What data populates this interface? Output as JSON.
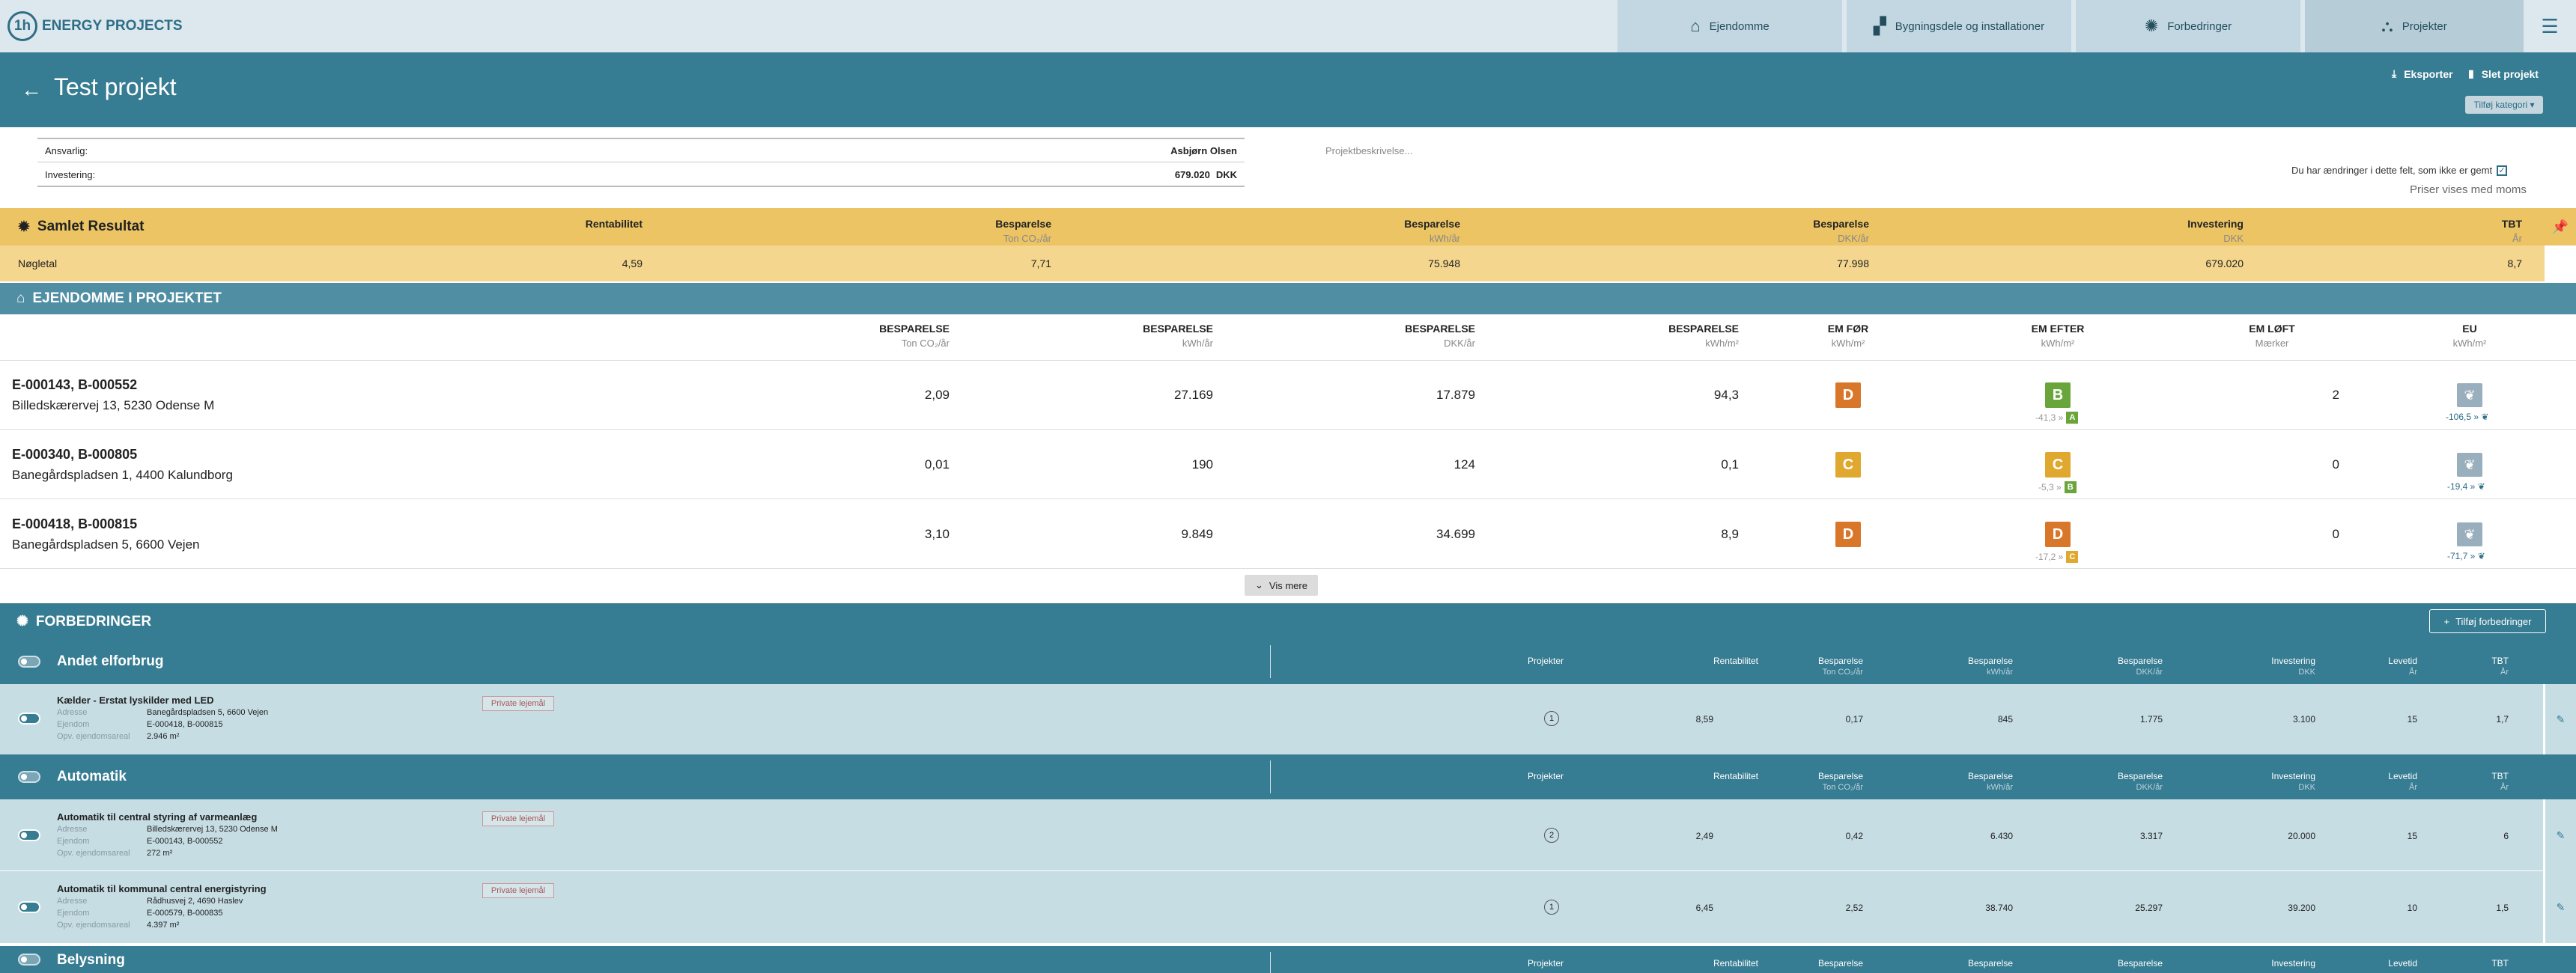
{
  "nav": {
    "logo_mark": "1h",
    "logo_text": "ENERGY PROJECTS",
    "tabs": [
      {
        "label": "Ejendomme",
        "icon": "house-icon"
      },
      {
        "label": "Bygningsdele og installationer",
        "icon": "building-parts-icon"
      },
      {
        "label": "Forbedringer",
        "icon": "lightbulb-icon"
      },
      {
        "label": "Projekter",
        "icon": "projects-icon"
      }
    ]
  },
  "header": {
    "title": "Test projekt",
    "export_label": "Eksporter",
    "delete_label": "Slet projekt",
    "add_category_label": "Tilføj kategori ▾"
  },
  "info": {
    "responsible_label": "Ansvarlig:",
    "responsible_value": "Asbjørn Olsen",
    "investment_label": "Investering:",
    "investment_value": "679.020",
    "investment_unit": "DKK",
    "description_placeholder": "Projektbeskrivelse...",
    "unsaved_text": "Du har ændringer i dette felt, som ikke er gemt",
    "prices_text": "Priser vises med moms"
  },
  "result": {
    "title": "Samlet Resultat",
    "cols": [
      {
        "label": "Rentabilitet",
        "unit": ""
      },
      {
        "label": "Besparelse",
        "unit": "Ton CO₂/år"
      },
      {
        "label": "Besparelse",
        "unit": "kWh/år"
      },
      {
        "label": "Besparelse",
        "unit": "DKK/år"
      },
      {
        "label": "Investering",
        "unit": "DKK"
      },
      {
        "label": "TBT",
        "unit": "År"
      }
    ],
    "row_label": "Nøgletal",
    "values": [
      "4,59",
      "7,71",
      "75.948",
      "77.998",
      "679.020",
      "8,7"
    ]
  },
  "properties": {
    "title": "EJENDOMME I PROJEKTET",
    "cols": [
      {
        "label": "BESPARELSE",
        "unit": "Ton CO₂/år"
      },
      {
        "label": "BESPARELSE",
        "unit": "kWh/år"
      },
      {
        "label": "BESPARELSE",
        "unit": "DKK/år"
      },
      {
        "label": "BESPARELSE",
        "unit": "kWh/m²"
      },
      {
        "label": "EM FØR",
        "unit": "kWh/m²"
      },
      {
        "label": "EM EFTER",
        "unit": "kWh/m²"
      },
      {
        "label": "EM LØFT",
        "unit": "Mærker"
      },
      {
        "label": "EU",
        "unit": "kWh/m²"
      }
    ],
    "rows": [
      {
        "id": "E-000143, B-000552",
        "address": "Billedskærervej 13, 5230 Odense M",
        "co2": "2,09",
        "kwh": "27.169",
        "dkk": "17.879",
        "kwhm2": "94,3",
        "before": "D",
        "before_color": "#d8772a",
        "after": "B",
        "after_color": "#6aa53c",
        "after_sub": "-41,3 »",
        "after_mini": "A",
        "after_mini_color": "#6aa53c",
        "lift": "2",
        "eu_sub": "-106,5 »"
      },
      {
        "id": "E-000340, B-000805",
        "address": "Banegårdspladsen 1, 4400 Kalundborg",
        "co2": "0,01",
        "kwh": "190",
        "dkk": "124",
        "kwhm2": "0,1",
        "before": "C",
        "before_color": "#e0a82e",
        "after": "C",
        "after_color": "#e0a82e",
        "after_sub": "-5,3 »",
        "after_mini": "B",
        "after_mini_color": "#6aa53c",
        "lift": "0",
        "eu_sub": "-19,4 »"
      },
      {
        "id": "E-000418, B-000815",
        "address": "Banegårdspladsen 5, 6600 Vejen",
        "co2": "3,10",
        "kwh": "9.849",
        "dkk": "34.699",
        "kwhm2": "8,9",
        "before": "D",
        "before_color": "#d8772a",
        "after": "D",
        "after_color": "#d8772a",
        "after_sub": "-17,2 »",
        "after_mini": "C",
        "after_mini_color": "#e0a82e",
        "lift": "0",
        "eu_sub": "-71,7 »"
      }
    ],
    "show_more": "Vis mere"
  },
  "improvements": {
    "title": "FORBEDRINGER",
    "add_label": "Tilføj forbedringer",
    "col_heads": [
      {
        "label": "Projekter",
        "unit": ""
      },
      {
        "label": "Rentabilitet",
        "unit": ""
      },
      {
        "label": "Besparelse",
        "unit": "Ton CO₂/år"
      },
      {
        "label": "Besparelse",
        "unit": "kWh/år"
      },
      {
        "label": "Besparelse",
        "unit": "DKK/år"
      },
      {
        "label": "Investering",
        "unit": "DKK"
      },
      {
        "label": "Levetid",
        "unit": "År"
      },
      {
        "label": "TBT",
        "unit": "År"
      }
    ],
    "labels": {
      "address": "Adresse",
      "property": "Ejendom",
      "area": "Opv. ejendomsareal",
      "private": "Private lejemål"
    },
    "categories": [
      {
        "name": "Andet elforbrug",
        "items": [
          {
            "title": "Kælder - Erstat lyskilder med LED",
            "address": "Banegårdspladsen 5, 6600 Vejen",
            "property": "E-000418, B-000815",
            "area": "2.946 m²",
            "projects": "1",
            "rent": "8,59",
            "co2": "0,17",
            "kwh": "845",
            "dkk": "1.775",
            "inv": "3.100",
            "life": "15",
            "tbt": "1,7"
          }
        ]
      },
      {
        "name": "Automatik",
        "items": [
          {
            "title": "Automatik til central styring af varmeanlæg",
            "address": "Billedskærervej 13, 5230 Odense M",
            "property": "E-000143, B-000552",
            "area": "272 m²",
            "projects": "2",
            "rent": "2,49",
            "co2": "0,42",
            "kwh": "6.430",
            "dkk": "3.317",
            "inv": "20.000",
            "life": "15",
            "tbt": "6"
          },
          {
            "title": "Automatik til kommunal central energistyring",
            "address": "Rådhusvej 2, 4690 Haslev",
            "property": "E-000579, B-000835",
            "area": "4.397 m²",
            "projects": "1",
            "rent": "6,45",
            "co2": "2,52",
            "kwh": "38.740",
            "dkk": "25.297",
            "inv": "39.200",
            "life": "10",
            "tbt": "1,5"
          }
        ]
      },
      {
        "name": "Belysning",
        "items": []
      }
    ]
  }
}
